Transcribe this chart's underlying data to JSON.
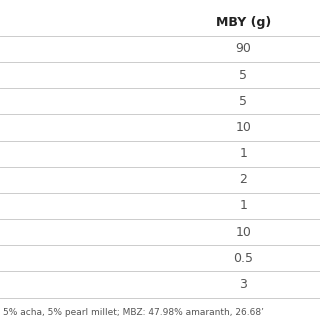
{
  "header": "MBY (g)",
  "values": [
    "90",
    "5",
    "5",
    "10",
    "1",
    "2",
    "1",
    "10",
    "0.5",
    "3"
  ],
  "footnote": "5% acha, 5% pearl millet; MBZ: 47.98% amaranth, 26.68’",
  "bg_color": "#ffffff",
  "header_color": "#222222",
  "cell_text_color": "#555555",
  "line_color": "#cccccc",
  "footnote_color": "#555555",
  "header_fontsize": 9,
  "cell_fontsize": 9,
  "footnote_fontsize": 6.5
}
